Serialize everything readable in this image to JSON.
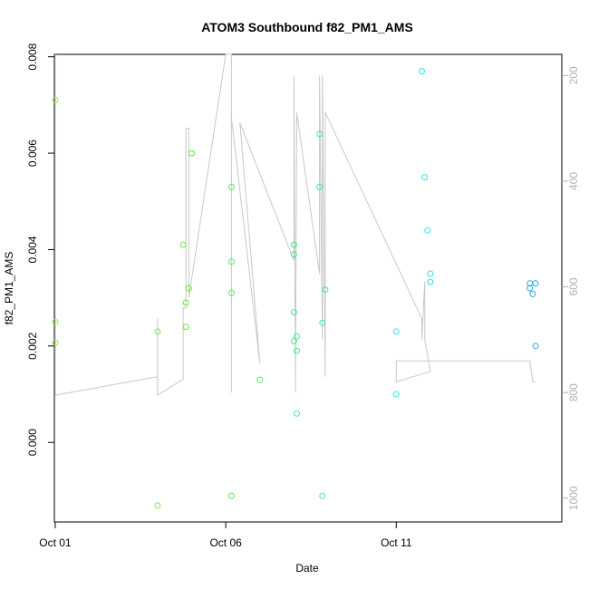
{
  "chart_data": {
    "type": "scatter",
    "title": "ATOM3 Southbound f82_PM1_AMS",
    "xlabel": "Date",
    "ylabel": "f82_PM1_AMS",
    "x_axis": {
      "kind": "date",
      "ticks": [
        {
          "value": "2016-10-01",
          "label": "Oct 01"
        },
        {
          "value": "2016-10-06",
          "label": "Oct 06"
        },
        {
          "value": "2016-10-11",
          "label": "Oct 11"
        }
      ],
      "range": [
        "2016-09-30T23:24",
        "2016-10-15T20:30"
      ]
    },
    "y_axis": {
      "ticks": [
        {
          "value": 0.0,
          "label": "0.000"
        },
        {
          "value": 0.002,
          "label": "0.002"
        },
        {
          "value": 0.004,
          "label": "0.004"
        },
        {
          "value": 0.006,
          "label": "0.006"
        },
        {
          "value": 0.008,
          "label": "0.008"
        }
      ],
      "range": [
        -0.00165,
        0.00805
      ]
    },
    "y2_axis": {
      "note": "right axis reversed (altitude-like), drawn in grey",
      "ticks": [
        {
          "value": 200,
          "label": "200"
        },
        {
          "value": 400,
          "label": "400"
        },
        {
          "value": 600,
          "label": "600"
        },
        {
          "value": 800,
          "label": "800"
        },
        {
          "value": 1000,
          "label": "1000"
        }
      ],
      "range": [
        1045,
        160
      ],
      "reversed": true
    },
    "grid": false,
    "points": [
      {
        "x": "2016-10-01T00:00",
        "y": 0.0071,
        "color": "#a2e83e"
      },
      {
        "x": "2016-10-01T00:00",
        "y": 0.0025,
        "color": "#a2e83e"
      },
      {
        "x": "2016-10-01T00:00",
        "y": 0.00207,
        "color": "#a2e83e"
      },
      {
        "x": "2016-10-04T00:00",
        "y": 0.0023,
        "color": "#7de83a"
      },
      {
        "x": "2016-10-04T00:00",
        "y": -0.00131,
        "color": "#7de83a"
      },
      {
        "x": "2016-10-04T18:00",
        "y": 0.0041,
        "color": "#6be83a"
      },
      {
        "x": "2016-10-04T20:00",
        "y": 0.0029,
        "color": "#6be83a"
      },
      {
        "x": "2016-10-04T20:00",
        "y": 0.0024,
        "color": "#6be83a"
      },
      {
        "x": "2016-10-04T22:00",
        "y": 0.0032,
        "color": "#6be83a"
      },
      {
        "x": "2016-10-05T00:00",
        "y": 0.006,
        "color": "#5be83a"
      },
      {
        "x": "2016-10-06T04:00",
        "y": 0.0053,
        "color": "#4ee85a"
      },
      {
        "x": "2016-10-06T04:00",
        "y": 0.00375,
        "color": "#4ee85a"
      },
      {
        "x": "2016-10-06T04:00",
        "y": 0.0031,
        "color": "#4ee85a"
      },
      {
        "x": "2016-10-06T04:00",
        "y": -0.00111,
        "color": "#4ee85a"
      },
      {
        "x": "2016-10-07T00:00",
        "y": 0.0013,
        "color": "#45e86a"
      },
      {
        "x": "2016-10-08T00:00",
        "y": 0.0041,
        "color": "#3fe88a"
      },
      {
        "x": "2016-10-08T00:00",
        "y": 0.0039,
        "color": "#3fe88a"
      },
      {
        "x": "2016-10-08T00:00",
        "y": 0.0027,
        "color": "#3fe88a"
      },
      {
        "x": "2016-10-08T00:00",
        "y": 0.0021,
        "color": "#3fe88a"
      },
      {
        "x": "2016-10-08T02:00",
        "y": 0.0022,
        "color": "#3fe88a"
      },
      {
        "x": "2016-10-08T02:00",
        "y": 0.0019,
        "color": "#3fe88a"
      },
      {
        "x": "2016-10-08T02:00",
        "y": 0.0006,
        "color": "#3fe88a"
      },
      {
        "x": "2016-10-08T18:00",
        "y": 0.0064,
        "color": "#38e8a4"
      },
      {
        "x": "2016-10-08T18:00",
        "y": 0.0053,
        "color": "#38e8a4"
      },
      {
        "x": "2016-10-08T22:00",
        "y": 0.00317,
        "color": "#38e8a4"
      },
      {
        "x": "2016-10-08T20:00",
        "y": 0.00248,
        "color": "#38e8a4"
      },
      {
        "x": "2016-10-08T20:00",
        "y": -0.00111,
        "color": "#38e8a4"
      },
      {
        "x": "2016-10-11T00:00",
        "y": 0.0023,
        "color": "#34e8d8"
      },
      {
        "x": "2016-10-11T00:00",
        "y": 0.001,
        "color": "#34e8d8"
      },
      {
        "x": "2016-10-11T18:00",
        "y": 0.0077,
        "color": "#33e0e8"
      },
      {
        "x": "2016-10-11T20:00",
        "y": 0.0055,
        "color": "#33e0e8"
      },
      {
        "x": "2016-10-11T22:00",
        "y": 0.0044,
        "color": "#33e0e8"
      },
      {
        "x": "2016-10-12T00:00",
        "y": 0.0035,
        "color": "#33d8e8"
      },
      {
        "x": "2016-10-12T00:00",
        "y": 0.00333,
        "color": "#33d8e8"
      },
      {
        "x": "2016-10-14T22:00",
        "y": 0.0033,
        "color": "#2aa8e8"
      },
      {
        "x": "2016-10-14T22:00",
        "y": 0.0032,
        "color": "#2aa8e8"
      },
      {
        "x": "2016-10-15T00:00",
        "y": 0.00308,
        "color": "#2aa8e8"
      },
      {
        "x": "2016-10-15T02:00",
        "y": 0.0033,
        "color": "#2aa8e8"
      },
      {
        "x": "2016-10-15T02:00",
        "y": 0.002,
        "color": "#2aa8e8"
      }
    ],
    "secondary_line": {
      "axis": "y2",
      "color": "#c8c8c8",
      "points": [
        {
          "x": "2016-10-01T00:00",
          "y": 160
        },
        {
          "x": "2016-10-01T00:00",
          "y": 805
        },
        {
          "x": "2016-10-04T00:00",
          "y": 770
        },
        {
          "x": "2016-10-04T00:00",
          "y": 660
        },
        {
          "x": "2016-10-04T00:00",
          "y": 805
        },
        {
          "x": "2016-10-04T18:00",
          "y": 775
        },
        {
          "x": "2016-10-04T18:00",
          "y": 640
        },
        {
          "x": "2016-10-04T20:00",
          "y": 640
        },
        {
          "x": "2016-10-04T20:00",
          "y": 300
        },
        {
          "x": "2016-10-04T22:00",
          "y": 300
        },
        {
          "x": "2016-10-04T22:00",
          "y": 620
        },
        {
          "x": "2016-10-06T00:00",
          "y": 160
        },
        {
          "x": "2016-10-06T04:00",
          "y": 160
        },
        {
          "x": "2016-10-06T04:00",
          "y": 800
        },
        {
          "x": "2016-10-06T04:00",
          "y": 280
        },
        {
          "x": "2016-10-07T00:00",
          "y": 745
        },
        {
          "x": "2016-10-06T10:00",
          "y": 290
        },
        {
          "x": "2016-10-08T00:00",
          "y": 550
        },
        {
          "x": "2016-10-08T00:00",
          "y": 200
        },
        {
          "x": "2016-10-08T01:00",
          "y": 780
        },
        {
          "x": "2016-10-08T01:00",
          "y": 800
        },
        {
          "x": "2016-10-08T02:00",
          "y": 270
        },
        {
          "x": "2016-10-08T18:00",
          "y": 575
        },
        {
          "x": "2016-10-08T18:00",
          "y": 200
        },
        {
          "x": "2016-10-08T20:00",
          "y": 700
        },
        {
          "x": "2016-10-08T20:00",
          "y": 200
        },
        {
          "x": "2016-10-08T22:00",
          "y": 770
        },
        {
          "x": "2016-10-08T22:00",
          "y": 270
        },
        {
          "x": "2016-10-11T18:00",
          "y": 660
        },
        {
          "x": "2016-10-11T18:00",
          "y": 700
        },
        {
          "x": "2016-10-11T20:00",
          "y": 590
        },
        {
          "x": "2016-10-11T20:00",
          "y": 700
        },
        {
          "x": "2016-10-12T00:00",
          "y": 760
        },
        {
          "x": "2016-10-11T00:00",
          "y": 780
        },
        {
          "x": "2016-10-11T00:00",
          "y": 740
        },
        {
          "x": "2016-10-14T22:00",
          "y": 740
        },
        {
          "x": "2016-10-15T00:00",
          "y": 780
        },
        {
          "x": "2016-10-15T02:00",
          "y": 780
        }
      ]
    }
  }
}
